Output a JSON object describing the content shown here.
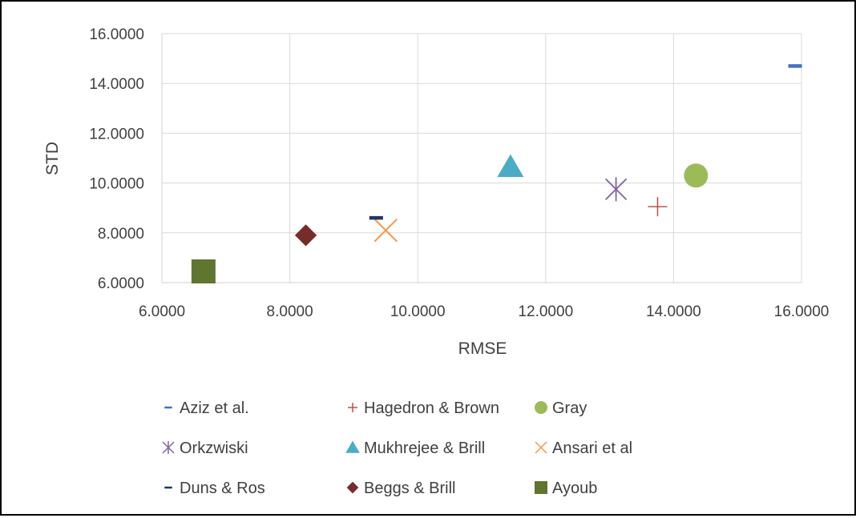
{
  "chart_data": {
    "type": "scatter",
    "title": "",
    "xlabel": "RMSE",
    "ylabel": "STD",
    "xlim": [
      6,
      16
    ],
    "ylim": [
      6,
      16
    ],
    "x_ticks": [
      "6.0000",
      "8.0000",
      "10.0000",
      "12.0000",
      "14.0000",
      "16.0000"
    ],
    "y_ticks": [
      "6.0000",
      "8.0000",
      "10.0000",
      "12.0000",
      "14.0000",
      "16.0000"
    ],
    "grid": true,
    "legend_position": "bottom",
    "series": [
      {
        "name": "Aziz et al.",
        "marker": "dash",
        "color": "#4472C4",
        "x": 15.9,
        "y": 14.7
      },
      {
        "name": "Hagedron & Brown",
        "marker": "plus",
        "color": "#C0504D",
        "x": 13.75,
        "y": 9.05
      },
      {
        "name": "Gray",
        "marker": "circle",
        "color": "#9BBB59",
        "x": 14.35,
        "y": 10.3
      },
      {
        "name": "Orkzwiski",
        "marker": "asterisk",
        "color": "#8064A2",
        "x": 13.1,
        "y": 9.75
      },
      {
        "name": "Mukhrejee & Brill",
        "marker": "triangle",
        "color": "#4BACC6",
        "x": 11.45,
        "y": 10.65
      },
      {
        "name": "Ansari et al",
        "marker": "x",
        "color": "#F79646",
        "x": 9.5,
        "y": 8.1
      },
      {
        "name": "Duns & Ros",
        "marker": "dash",
        "color": "#1F3864",
        "x": 9.35,
        "y": 8.6
      },
      {
        "name": "Beggs & Brill",
        "marker": "diamond",
        "color": "#772C2A",
        "x": 8.25,
        "y": 7.9
      },
      {
        "name": "Ayoub",
        "marker": "square",
        "color": "#5F7530",
        "x": 6.65,
        "y": 6.45
      }
    ]
  }
}
